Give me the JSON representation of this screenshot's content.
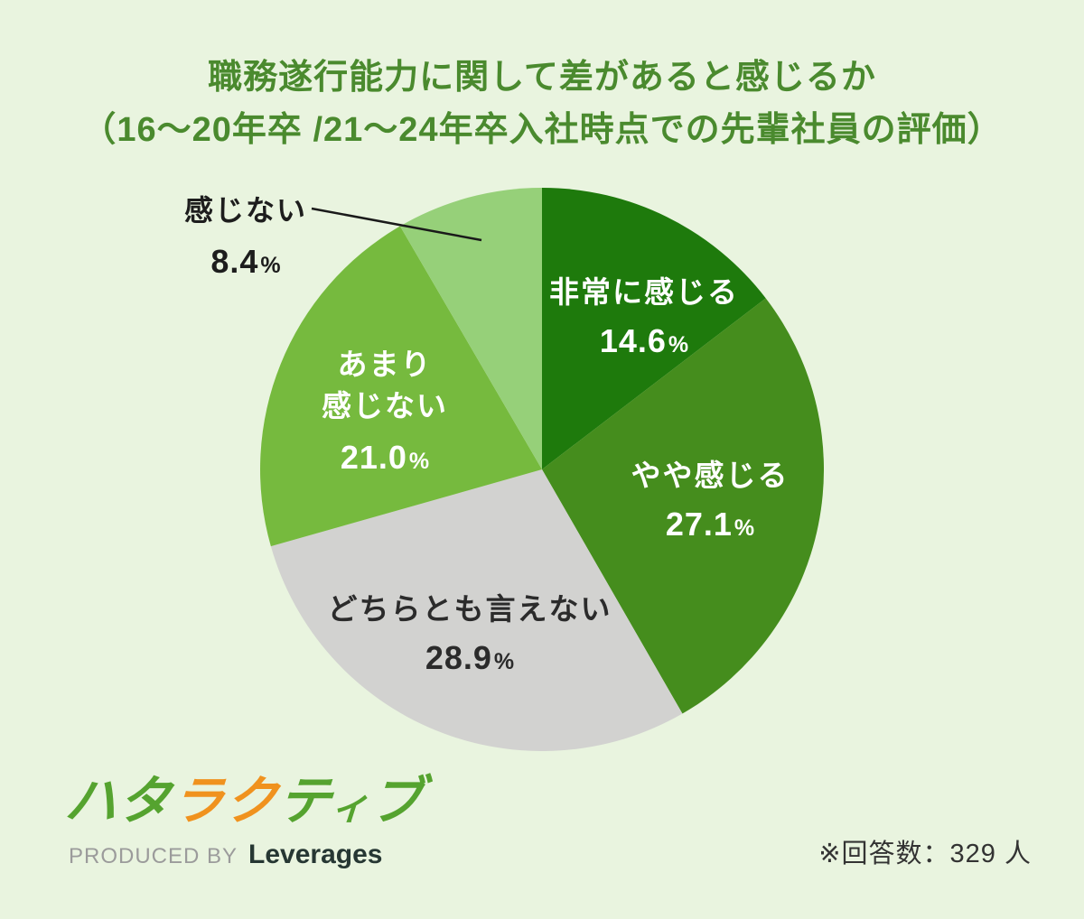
{
  "chart_data": {
    "type": "pie",
    "title_line1": "職務遂行能力に関して差があると感じるか",
    "title_line2": "（16〜20年卒 /21〜24年卒入社時点での先輩社員の評価）",
    "unit": "%",
    "start_angle_deg": -90,
    "direction": "clockwise",
    "percent_sign": "%",
    "segments": [
      {
        "label": "非常に感じる",
        "pct_label": "14.6",
        "value": 14.6,
        "color": "#1e7a0c",
        "text_color": "#ffffff",
        "label_placement": "inside"
      },
      {
        "label": "やや感じる",
        "pct_label": "27.1",
        "value": 27.1,
        "color": "#458d1d",
        "text_color": "#ffffff",
        "label_placement": "inside"
      },
      {
        "label": "どちらとも言えない",
        "pct_label": "28.9",
        "value": 28.9,
        "color": "#d2d2d0",
        "text_color": "#2b2b2b",
        "label_placement": "inside"
      },
      {
        "label": "あまり\n感じない",
        "pct_label": "21.0",
        "value": 21.0,
        "color": "#76ba3e",
        "text_color": "#ffffff",
        "label_placement": "inside"
      },
      {
        "label": "感じない",
        "pct_label": "8.4",
        "value": 8.4,
        "color": "#96d079",
        "text_color": "#1d1d1d",
        "label_placement": "outside-callout"
      }
    ],
    "note": "※回答数：329 人"
  },
  "footer": {
    "logo_chars": [
      {
        "char": "ハ",
        "color": "#55a32f"
      },
      {
        "char": "タ",
        "color": "#55a32f"
      },
      {
        "char": "ラ",
        "color": "#f0921e"
      },
      {
        "char": "ク",
        "color": "#f0921e"
      },
      {
        "char": "テ",
        "color": "#55a32f"
      },
      {
        "char": "ィ",
        "color": "#55a32f"
      },
      {
        "char": "ブ",
        "color": "#55a32f"
      }
    ],
    "produced_by": "PRODUCED BY",
    "company": "Leverages"
  },
  "colors": {
    "background": "#e9f4df",
    "title_text": "#4a8a2e",
    "callout_line": "#1a1a1a",
    "note_text": "#333333",
    "produced_by_text": "#9b9b9b",
    "company_text": "#263733"
  }
}
